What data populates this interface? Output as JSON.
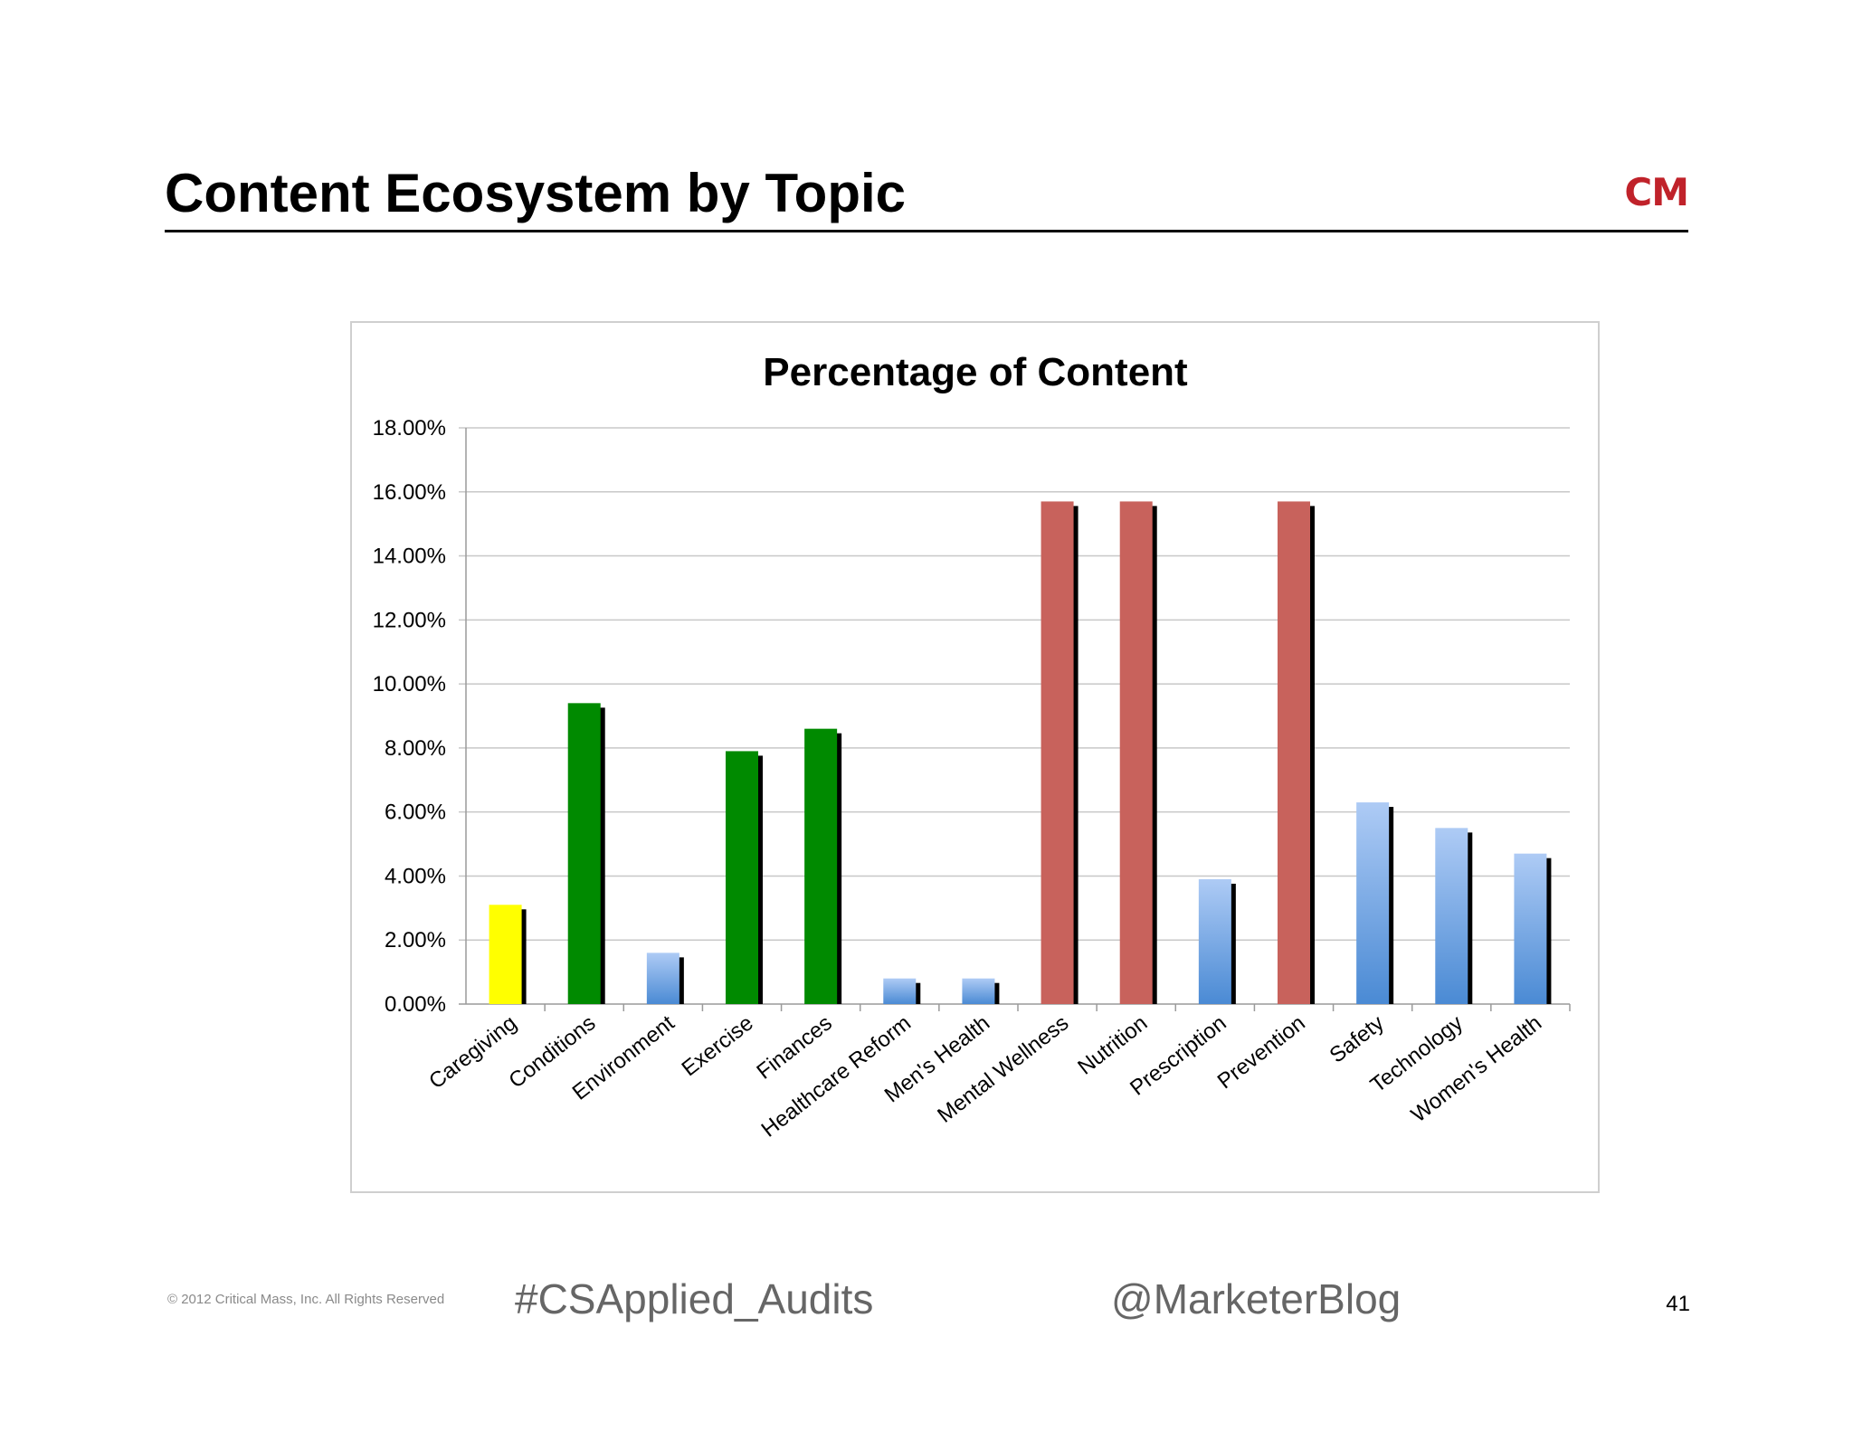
{
  "slide": {
    "title": "Content Ecosystem by Topic",
    "logo_text": "CM",
    "page_number": "41"
  },
  "footer": {
    "copyright": "© 2012 Critical Mass, Inc. All Rights Reserved",
    "hashtag": "#CSApplied_Audits",
    "handle": "@MarketerBlog"
  },
  "colors": {
    "yellow": "#ffff00",
    "green": "#008a00",
    "blue": "#6fa3e0",
    "red": "#c8625c",
    "logo": "#c0222a"
  },
  "chart_data": {
    "type": "bar",
    "title": "Percentage of Content",
    "xlabel": "",
    "ylabel": "",
    "ylim": [
      0,
      18
    ],
    "yticks": [
      "0.00%",
      "2.00%",
      "4.00%",
      "6.00%",
      "8.00%",
      "10.00%",
      "12.00%",
      "14.00%",
      "16.00%",
      "18.00%"
    ],
    "grid": true,
    "legend": "none",
    "categories": [
      "Caregiving",
      "Conditions",
      "Environment",
      "Exercise",
      "Finances",
      "Healthcare Reform",
      "Men's Health",
      "Mental Wellness",
      "Nutrition",
      "Prescription",
      "Prevention",
      "Safety",
      "Technology",
      "Women's Health"
    ],
    "values": [
      3.1,
      9.4,
      1.6,
      7.9,
      8.6,
      0.8,
      0.8,
      15.7,
      15.7,
      3.9,
      15.7,
      6.3,
      5.5,
      4.7
    ],
    "bar_colors": [
      "yellow",
      "green",
      "blue",
      "green",
      "green",
      "blue",
      "blue",
      "red",
      "red",
      "blue",
      "red",
      "blue",
      "blue",
      "blue"
    ]
  }
}
